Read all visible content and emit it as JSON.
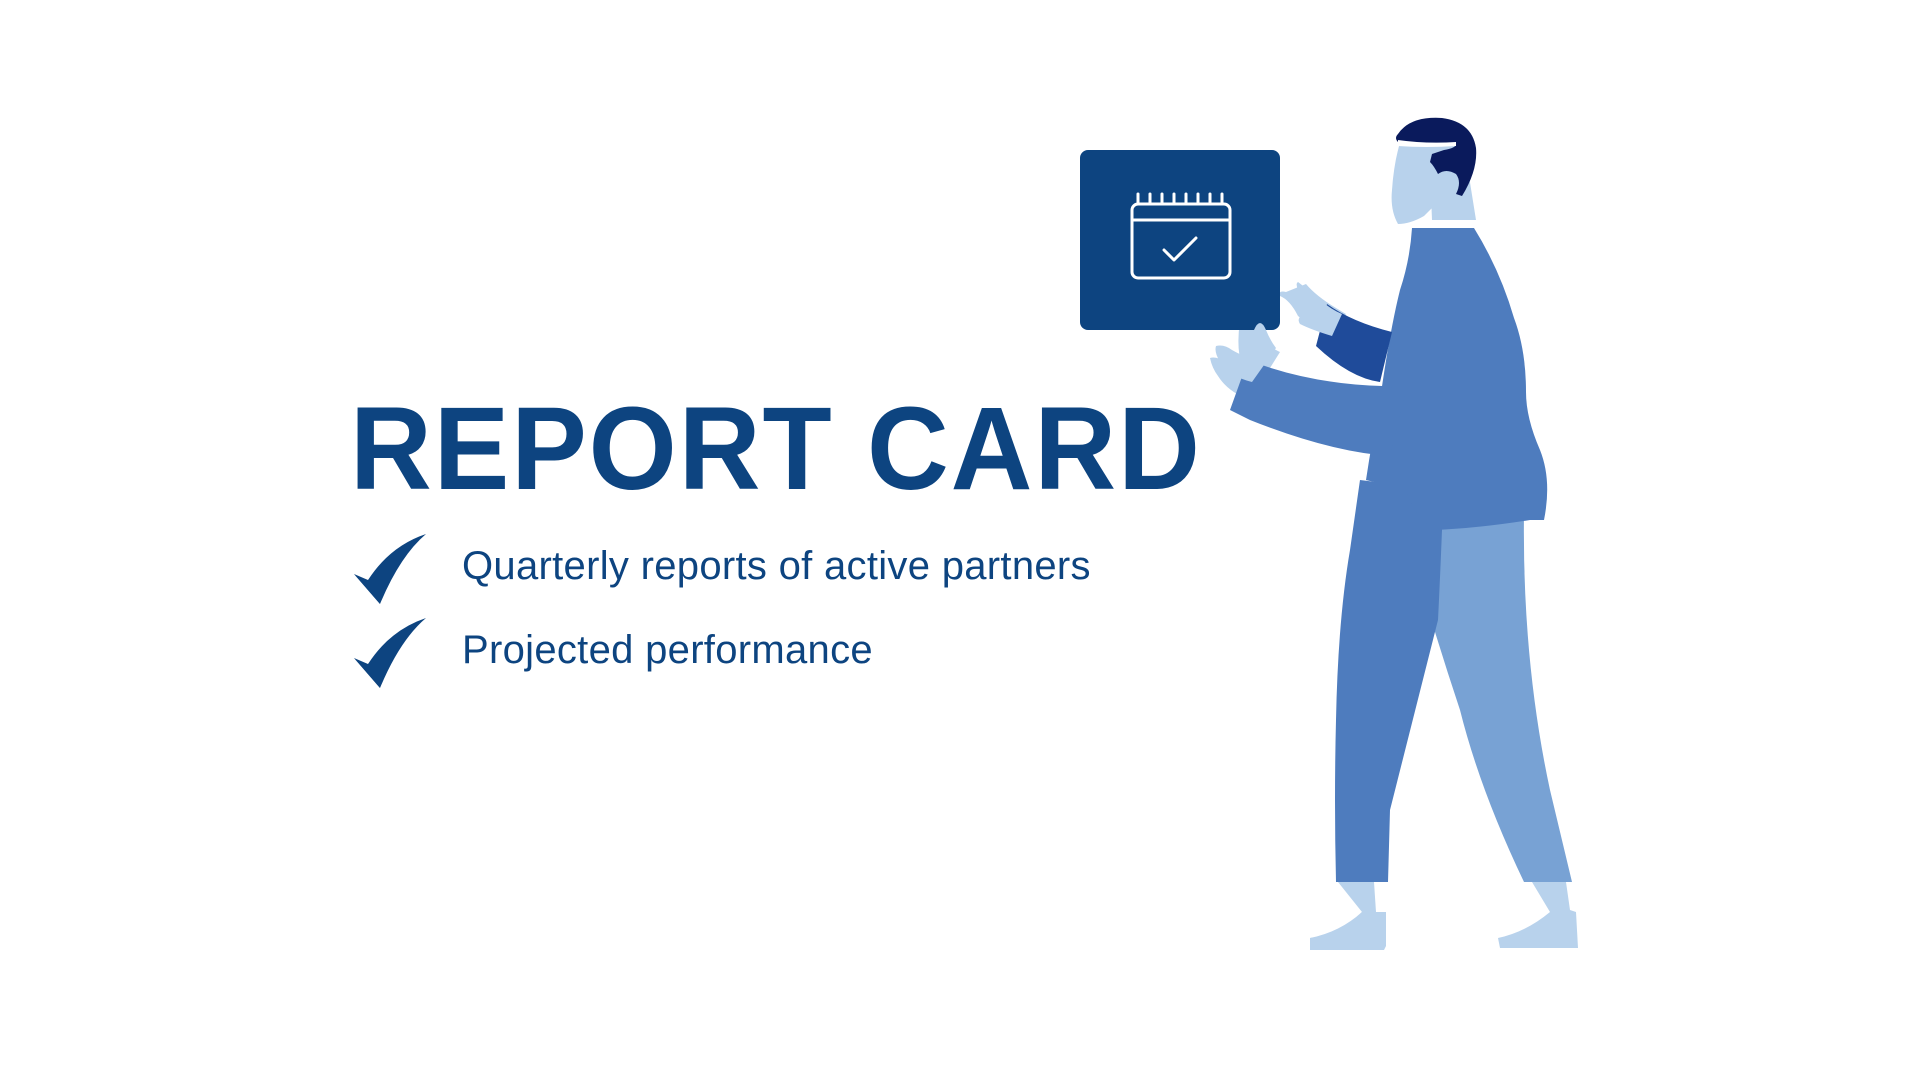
{
  "slide": {
    "title": "REPORT CARD",
    "items": [
      {
        "label": "Quarterly reports of active partners",
        "icon": "checkmark-icon"
      },
      {
        "label": "Projected performance",
        "icon": "checkmark-icon"
      }
    ]
  },
  "illustration": {
    "subject": "person-holding-calendar-card",
    "card_icon": "calendar-check-icon"
  },
  "colors": {
    "title": "#0d4480",
    "card": "#0d4480",
    "sweater": "#4e7cbe",
    "pants_back": "#78a2d4",
    "skin": "#b8d2ec",
    "hair": "#0a1a5c",
    "cuff": "#1f4b9a"
  }
}
